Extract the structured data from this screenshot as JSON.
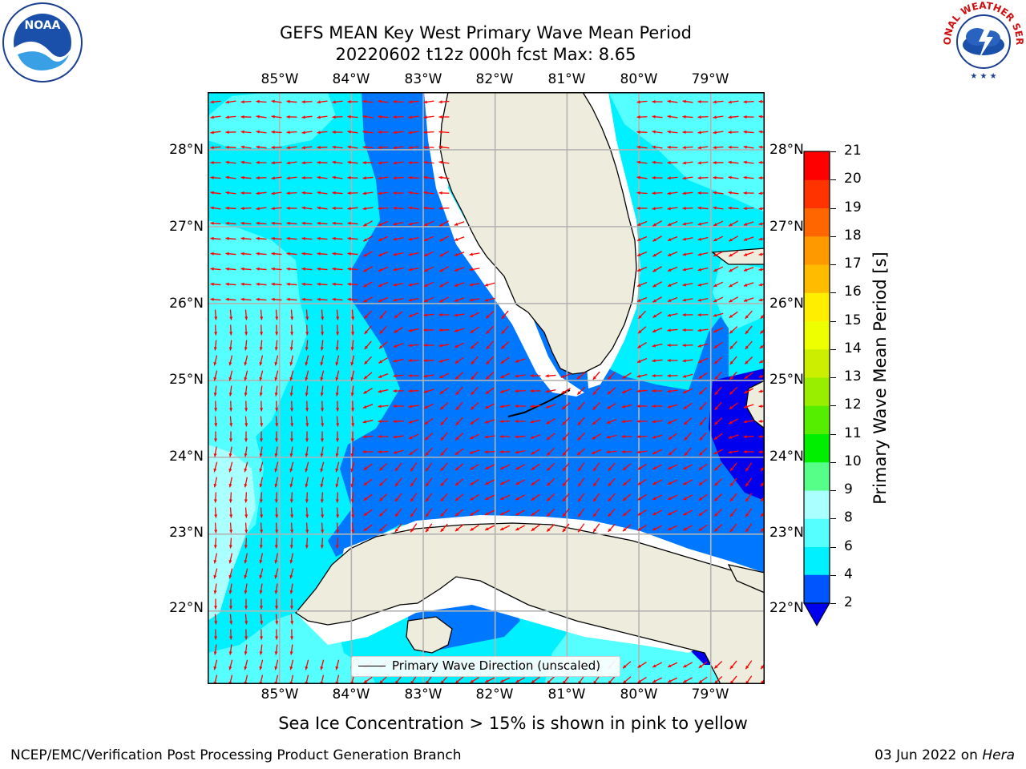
{
  "title": {
    "line1": "GEFS MEAN Key West Primary Wave Mean Period",
    "line2": "20220602 t12z 000h fcst   Max: 8.65"
  },
  "map": {
    "lon_ticks": [
      "85°W",
      "84°W",
      "83°W",
      "82°W",
      "81°W",
      "80°W",
      "79°W"
    ],
    "lat_ticks": [
      "28°N",
      "27°N",
      "26°N",
      "25°N",
      "24°N",
      "23°N",
      "22°N"
    ],
    "extent": {
      "lon": [
        -86.0,
        -78.25
      ],
      "lat": [
        21.05,
        28.75
      ]
    },
    "colors": {
      "land": "#eeecdc",
      "coast": "#000000",
      "grid": "#b3b3b3",
      "arrow": "#ff0000",
      "nodata": "#ffffff"
    },
    "legend": {
      "label": "Primary Wave Direction (unscaled)"
    }
  },
  "colorbar": {
    "label": "Primary Wave Mean Period [s]",
    "ticks": [
      "2",
      "4",
      "6",
      "8",
      "9",
      "10",
      "11",
      "12",
      "13",
      "14",
      "15",
      "16",
      "17",
      "18",
      "19",
      "20",
      "21"
    ],
    "colors": [
      "#0055ff",
      "#00a8ff",
      "#00f0ff",
      "#55ffff",
      "#aaffff",
      "#55ff88",
      "#00ee00",
      "#55ee00",
      "#99ee00",
      "#ccee00",
      "#eeff00",
      "#ffee00",
      "#ffbb00",
      "#ff9900",
      "#ff6600",
      "#ff3300",
      "#ff0000"
    ],
    "under_color": "#0000ee"
  },
  "caption": "Sea Ice Concentration > 15% is shown in pink to yellow",
  "footer": {
    "left": "NCEP/EMC/Verification Post Processing Product Generation Branch",
    "right_prefix": "03 Jun 2022 on ",
    "right_host": "Hera"
  },
  "logos": {
    "left": "NOAA",
    "right": "NATIONAL WEATHER SERVICE"
  }
}
